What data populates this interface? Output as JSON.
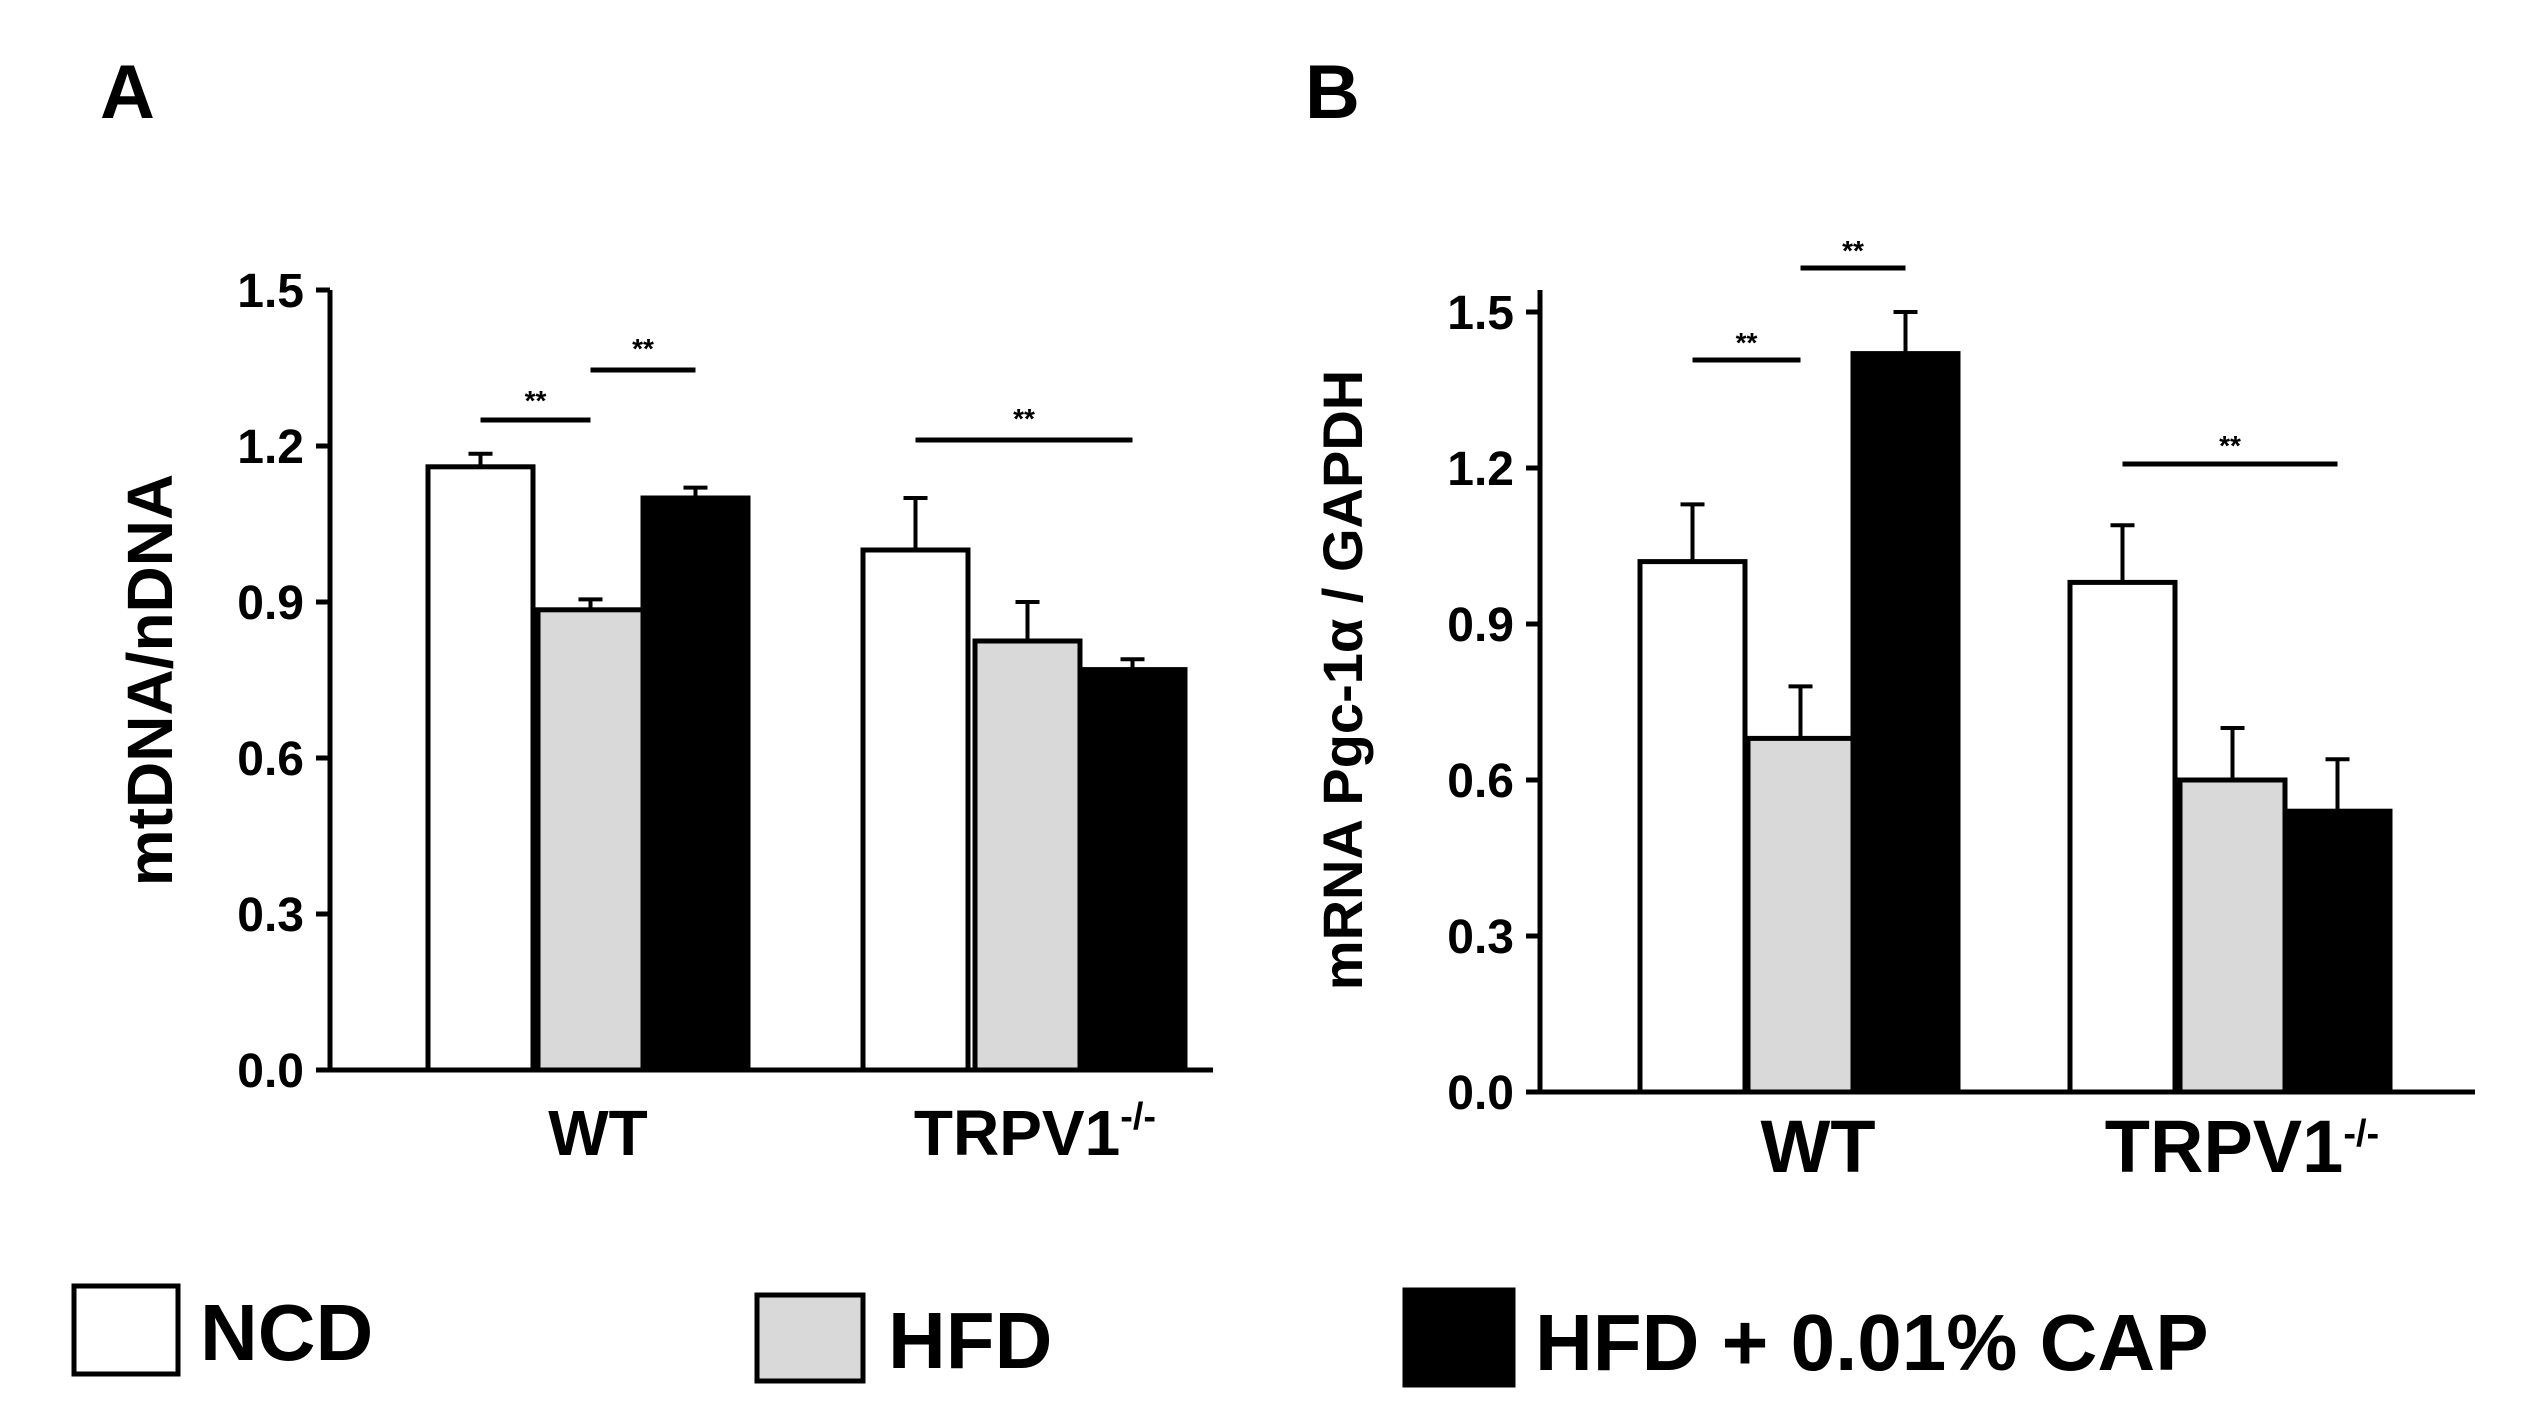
{
  "colors": {
    "NCD": "#ffffff",
    "HFD": "#d9d9d9",
    "HFD + 0.01% CAP": "#000000",
    "stroke": "#000000"
  },
  "legend": [
    {
      "label": "NCD",
      "color": "#ffffff"
    },
    {
      "label": "HFD",
      "color": "#d9d9d9"
    },
    {
      "label": "HFD + 0.01% CAP",
      "color": "#000000"
    }
  ],
  "chart_data": [
    {
      "panel": "A",
      "type": "bar",
      "title": "",
      "ylabel": "mtDNA/nDNA",
      "xlabel": "",
      "ylim": [
        0,
        1.5
      ],
      "yticks": [
        "0.0",
        "0.3",
        "0.6",
        "0.9",
        "1.2",
        "1.5"
      ],
      "groups": [
        {
          "name": "WT",
          "superscript": ""
        },
        {
          "name": "TRPV1",
          "superscript": "-/-"
        }
      ],
      "series": [
        {
          "name": "NCD",
          "values": [
            1.16,
            1.0
          ],
          "errors": [
            0.025,
            0.1
          ]
        },
        {
          "name": "HFD",
          "values": [
            0.885,
            0.825
          ],
          "errors": [
            0.02,
            0.075
          ]
        },
        {
          "name": "HFD + 0.01% CAP",
          "values": [
            1.1,
            0.77
          ],
          "errors": [
            0.02,
            0.02
          ]
        }
      ],
      "significance": [
        {
          "group": 0,
          "from": 0,
          "to": 1,
          "label": "**"
        },
        {
          "group": 0,
          "from": 1,
          "to": 2,
          "label": "**"
        },
        {
          "group": 1,
          "from": 0,
          "to": 2,
          "label": "**"
        }
      ]
    },
    {
      "panel": "B",
      "type": "bar",
      "title": "",
      "ylabel": "mRNA Pgc-1α / GAPDH",
      "xlabel": "",
      "ylim": [
        0,
        1.5
      ],
      "yticks": [
        "0.0",
        "0.3",
        "0.6",
        "0.9",
        "1.2",
        "1.5"
      ],
      "groups": [
        {
          "name": "WT",
          "superscript": ""
        },
        {
          "name": "TRPV1",
          "superscript": "-/-"
        }
      ],
      "series": [
        {
          "name": "NCD",
          "values": [
            1.02,
            0.98
          ],
          "errors": [
            0.11,
            0.11
          ]
        },
        {
          "name": "HFD",
          "values": [
            0.68,
            0.6
          ],
          "errors": [
            0.1,
            0.1
          ]
        },
        {
          "name": "HFD + 0.01% CAP",
          "values": [
            1.42,
            0.54
          ],
          "errors": [
            0.08,
            0.1
          ]
        }
      ],
      "significance": [
        {
          "group": 0,
          "from": 0,
          "to": 1,
          "label": "**"
        },
        {
          "group": 0,
          "from": 1,
          "to": 2,
          "label": "**"
        },
        {
          "group": 1,
          "from": 0,
          "to": 2,
          "label": "**"
        }
      ]
    }
  ]
}
